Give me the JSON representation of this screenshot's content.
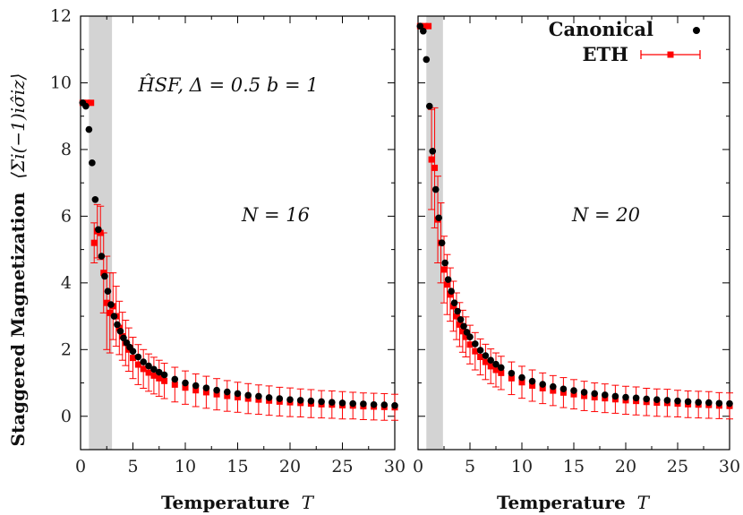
{
  "chart_data": {
    "type": "scatter",
    "ylabel": "Staggered Magnetization",
    "ylabel_expr": "⟨Σi(−1)iσ̂iz⟩",
    "xlabel": "Temperature",
    "xlabel_symbol": "T",
    "ylim": [
      -1,
      12
    ],
    "yticks": [
      0,
      2,
      4,
      6,
      8,
      10,
      12
    ],
    "xticks": [
      0,
      5,
      10,
      15,
      20,
      25,
      30
    ],
    "grid": false,
    "legend": {
      "placement": "top-right",
      "entries": [
        "Canonical",
        "ETH"
      ]
    },
    "colors": {
      "canonical": "#000000",
      "eth": "#ff0000",
      "band": "#d3d3d3"
    },
    "panels": [
      {
        "xlim": [
          0,
          30
        ],
        "annotation_main": "N = 16",
        "annotation_param": "ĤSF, Δ = 0.5 b = 1",
        "shaded_band": [
          0.8,
          3.0
        ],
        "canonical": {
          "x": [
            0.2,
            0.5,
            0.8,
            1.1,
            1.4,
            1.7,
            2.0,
            2.3,
            2.6,
            2.9,
            3.2,
            3.5,
            3.8,
            4.1,
            4.4,
            4.7,
            5.0,
            5.5,
            6.0,
            6.5,
            7.0,
            7.5,
            8.0,
            9.0,
            10.0,
            11.0,
            12.0,
            13.0,
            14.0,
            15.0,
            16.0,
            17.0,
            18.0,
            19.0,
            20.0,
            21.0,
            22.0,
            23.0,
            24.0,
            25.0,
            26.0,
            27.0,
            28.0,
            29.0,
            30.0
          ],
          "y": [
            9.4,
            9.3,
            8.6,
            7.6,
            6.5,
            5.6,
            4.8,
            4.2,
            3.75,
            3.35,
            3.0,
            2.75,
            2.55,
            2.35,
            2.2,
            2.07,
            1.95,
            1.78,
            1.63,
            1.51,
            1.41,
            1.32,
            1.24,
            1.11,
            1.0,
            0.92,
            0.85,
            0.78,
            0.73,
            0.68,
            0.63,
            0.6,
            0.56,
            0.53,
            0.5,
            0.48,
            0.46,
            0.44,
            0.42,
            0.4,
            0.38,
            0.37,
            0.35,
            0.34,
            0.32
          ]
        },
        "eth": {
          "x": [
            0.2,
            0.6,
            1.0,
            1.3,
            1.6,
            1.9,
            2.2,
            2.5,
            2.8,
            3.1,
            3.4,
            3.7,
            4.0,
            4.3,
            4.6,
            5.0,
            5.5,
            6.0,
            6.5,
            7.0,
            7.5,
            8.0,
            9.0,
            10.0,
            11.0,
            12.0,
            13.0,
            14.0,
            15.0,
            16.0,
            17.0,
            18.0,
            19.0,
            20.0,
            21.0,
            22.0,
            23.0,
            24.0,
            25.0,
            26.0,
            27.0,
            28.0,
            29.0,
            30.0
          ],
          "y": [
            9.4,
            9.4,
            9.4,
            5.2,
            5.55,
            5.5,
            4.3,
            3.4,
            3.1,
            3.3,
            3.0,
            2.65,
            2.4,
            2.2,
            2.0,
            1.75,
            1.55,
            1.42,
            1.31,
            1.22,
            1.14,
            1.06,
            0.95,
            0.86,
            0.78,
            0.72,
            0.66,
            0.61,
            0.57,
            0.53,
            0.5,
            0.47,
            0.44,
            0.42,
            0.4,
            0.38,
            0.36,
            0.35,
            0.33,
            0.32,
            0.3,
            0.29,
            0.28,
            0.27
          ],
          "err": [
            0,
            0,
            0,
            0.6,
            0.8,
            0.8,
            1.2,
            1.4,
            1.2,
            1.0,
            0.9,
            0.8,
            0.72,
            0.68,
            0.65,
            0.62,
            0.6,
            0.58,
            0.56,
            0.55,
            0.54,
            0.53,
            0.52,
            0.5,
            0.49,
            0.48,
            0.47,
            0.46,
            0.45,
            0.45,
            0.44,
            0.44,
            0.43,
            0.43,
            0.42,
            0.42,
            0.41,
            0.41,
            0.41,
            0.4,
            0.4,
            0.4,
            0.4,
            0.39
          ]
        }
      },
      {
        "xlim": [
          0,
          30
        ],
        "annotation_main": "N = 20",
        "shaded_band": [
          0.8,
          2.4
        ],
        "canonical": {
          "x": [
            0.2,
            0.5,
            0.8,
            1.1,
            1.4,
            1.7,
            2.0,
            2.3,
            2.6,
            2.9,
            3.2,
            3.5,
            3.8,
            4.1,
            4.4,
            4.7,
            5.0,
            5.5,
            6.0,
            6.5,
            7.0,
            7.5,
            8.0,
            9.0,
            10.0,
            11.0,
            12.0,
            13.0,
            14.0,
            15.0,
            16.0,
            17.0,
            18.0,
            19.0,
            20.0,
            21.0,
            22.0,
            23.0,
            24.0,
            25.0,
            26.0,
            27.0,
            28.0,
            29.0,
            30.0
          ],
          "y": [
            11.7,
            11.55,
            10.7,
            9.3,
            7.95,
            6.8,
            5.95,
            5.2,
            4.6,
            4.1,
            3.75,
            3.4,
            3.15,
            2.9,
            2.7,
            2.52,
            2.38,
            2.17,
            1.98,
            1.82,
            1.68,
            1.56,
            1.46,
            1.29,
            1.16,
            1.05,
            0.96,
            0.89,
            0.82,
            0.77,
            0.72,
            0.68,
            0.64,
            0.6,
            0.57,
            0.55,
            0.52,
            0.5,
            0.48,
            0.46,
            0.44,
            0.42,
            0.41,
            0.39,
            0.38
          ]
        },
        "eth": {
          "x": [
            0.2,
            0.6,
            1.0,
            1.3,
            1.6,
            1.9,
            2.2,
            2.5,
            2.8,
            3.1,
            3.4,
            3.7,
            4.0,
            4.3,
            4.6,
            5.0,
            5.5,
            6.0,
            6.5,
            7.0,
            7.5,
            8.0,
            9.0,
            10.0,
            11.0,
            12.0,
            13.0,
            14.0,
            15.0,
            16.0,
            17.0,
            18.0,
            19.0,
            20.0,
            21.0,
            22.0,
            23.0,
            24.0,
            25.0,
            26.0,
            27.0,
            28.0,
            29.0,
            30.0
          ],
          "y": [
            11.7,
            11.7,
            11.7,
            7.7,
            7.45,
            5.9,
            5.2,
            4.4,
            3.95,
            3.65,
            3.3,
            3.0,
            2.75,
            2.55,
            2.38,
            2.15,
            1.95,
            1.78,
            1.63,
            1.5,
            1.39,
            1.3,
            1.14,
            1.02,
            0.92,
            0.84,
            0.77,
            0.71,
            0.66,
            0.61,
            0.57,
            0.54,
            0.51,
            0.48,
            0.46,
            0.43,
            0.41,
            0.4,
            0.38,
            0.36,
            0.35,
            0.34,
            0.32,
            0.31
          ],
          "err": [
            0,
            0,
            0,
            1.5,
            1.8,
            1.3,
            1.2,
            1.0,
            0.9,
            0.8,
            0.75,
            0.7,
            0.66,
            0.63,
            0.6,
            0.58,
            0.56,
            0.54,
            0.53,
            0.52,
            0.51,
            0.5,
            0.49,
            0.48,
            0.47,
            0.46,
            0.45,
            0.45,
            0.44,
            0.44,
            0.43,
            0.43,
            0.42,
            0.42,
            0.42,
            0.41,
            0.41,
            0.41,
            0.4,
            0.4,
            0.4,
            0.4,
            0.39,
            0.39
          ]
        }
      }
    ]
  }
}
